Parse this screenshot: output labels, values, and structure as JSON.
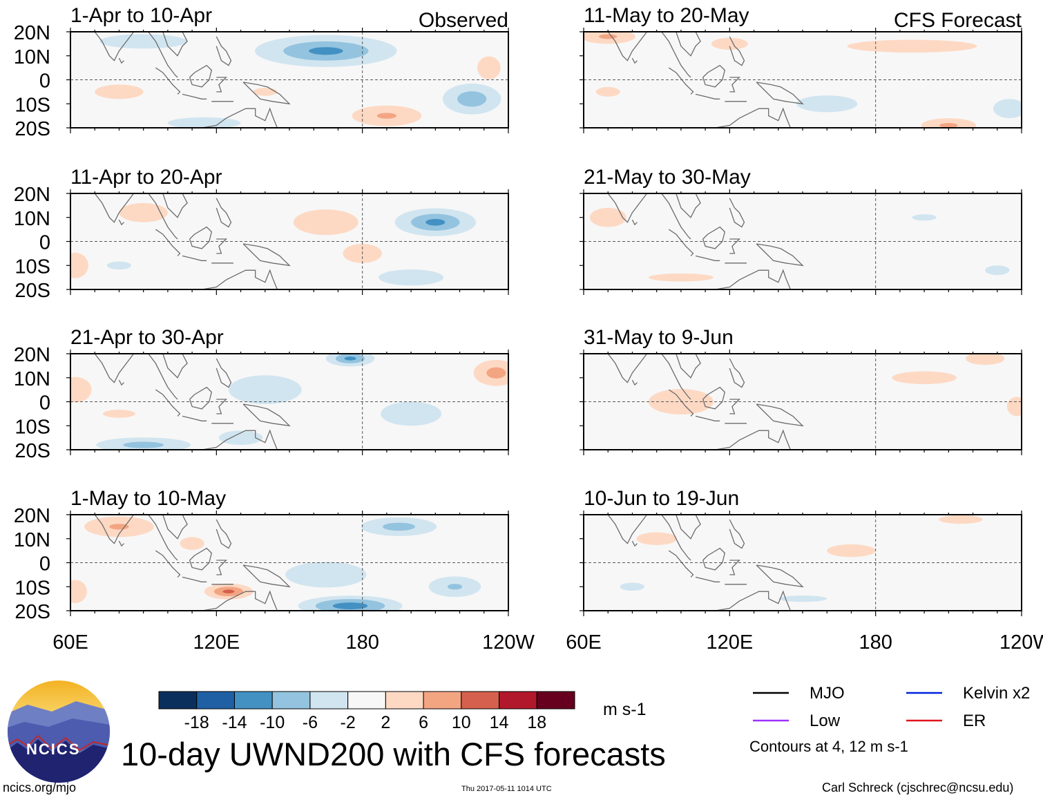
{
  "figure": {
    "main_title": "10-day UWND200 with CFS forecasts",
    "left_column_tag": "Observed",
    "right_column_tag": "CFS Forecast",
    "site_url": "ncics.org/mjo",
    "timestamp": "Thu 2017-05-11 1014 UTC",
    "credit": "Carl Schreck (cjschrec@ncsu.edu)",
    "logo_text": "NCICS",
    "contour_note": "Contours at 4, 12 m s-1"
  },
  "colorbar": {
    "units": "m s-1",
    "tick_labels": [
      "-18",
      "-14",
      "-10",
      "-6",
      "-2",
      "2",
      "6",
      "10",
      "14",
      "18"
    ],
    "colors": [
      "#0b2f5c",
      "#1f60a4",
      "#4391c3",
      "#93c3df",
      "#d1e5f0",
      "#f7f7f7",
      "#fdd9c4",
      "#f3a582",
      "#d5604d",
      "#b2182b",
      "#67001f"
    ]
  },
  "legend": [
    {
      "label": "MJO",
      "color": "#000000"
    },
    {
      "label": "Kelvin x2",
      "color": "#0022dd"
    },
    {
      "label": "Low",
      "color": "#9b30ff"
    },
    {
      "label": "ER",
      "color": "#e0141e"
    }
  ],
  "chart_data": {
    "type": "heatmap",
    "variable": "UWND200 anomaly",
    "xticks": [
      "60E",
      "120E",
      "180",
      "120W"
    ],
    "xrange_deg": [
      60,
      240
    ],
    "yticks": [
      "20N",
      "10N",
      "0",
      "10S",
      "20S"
    ],
    "yrange_deg": [
      -20,
      20
    ],
    "panels": [
      {
        "title": "1-Apr to 10-Apr",
        "source": "Observed",
        "blobs": [
          {
            "lon": 165,
            "lat": 12,
            "rx": 35,
            "ry": 8,
            "v": -12
          },
          {
            "lon": 225,
            "lat": -8,
            "rx": 15,
            "ry": 8,
            "v": -10
          },
          {
            "lon": 90,
            "lat": 16,
            "rx": 30,
            "ry": 5,
            "v": -5
          },
          {
            "lon": 80,
            "lat": -5,
            "rx": 20,
            "ry": 6,
            "v": 4
          },
          {
            "lon": 190,
            "lat": -15,
            "rx": 20,
            "ry": 6,
            "v": 7
          },
          {
            "lon": 115,
            "lat": -18,
            "rx": 25,
            "ry": 4,
            "v": -5
          },
          {
            "lon": 232,
            "lat": 5,
            "rx": 8,
            "ry": 8,
            "v": 5
          },
          {
            "lon": 140,
            "lat": -5,
            "rx": 15,
            "ry": 5,
            "v": 3
          }
        ]
      },
      {
        "title": "11-Apr to 20-Apr",
        "source": "Observed",
        "blobs": [
          {
            "lon": 210,
            "lat": 8,
            "rx": 20,
            "ry": 7,
            "v": -12
          },
          {
            "lon": 90,
            "lat": 12,
            "rx": 20,
            "ry": 8,
            "v": 4
          },
          {
            "lon": 165,
            "lat": 8,
            "rx": 20,
            "ry": 8,
            "v": 6
          },
          {
            "lon": 62,
            "lat": -10,
            "rx": 8,
            "ry": 8,
            "v": 6
          },
          {
            "lon": 180,
            "lat": -5,
            "rx": 12,
            "ry": 6,
            "v": 6
          },
          {
            "lon": 200,
            "lat": -15,
            "rx": 20,
            "ry": 5,
            "v": -6
          },
          {
            "lon": 80,
            "lat": -10,
            "rx": 15,
            "ry": 5,
            "v": -3
          }
        ]
      },
      {
        "title": "21-Apr to 30-Apr",
        "source": "Observed",
        "blobs": [
          {
            "lon": 175,
            "lat": 18,
            "rx": 12,
            "ry": 4,
            "v": -12
          },
          {
            "lon": 62,
            "lat": 5,
            "rx": 10,
            "ry": 8,
            "v": 6
          },
          {
            "lon": 235,
            "lat": 12,
            "rx": 12,
            "ry": 7,
            "v": 9
          },
          {
            "lon": 140,
            "lat": 5,
            "rx": 25,
            "ry": 10,
            "v": -5
          },
          {
            "lon": 200,
            "lat": -5,
            "rx": 25,
            "ry": 10,
            "v": -4
          },
          {
            "lon": 90,
            "lat": -18,
            "rx": 25,
            "ry": 4,
            "v": -9
          },
          {
            "lon": 130,
            "lat": -15,
            "rx": 15,
            "ry": 5,
            "v": -5
          },
          {
            "lon": 80,
            "lat": -5,
            "rx": 20,
            "ry": 5,
            "v": 3
          }
        ]
      },
      {
        "title": "1-May to 10-May",
        "source": "Observed",
        "blobs": [
          {
            "lon": 80,
            "lat": 15,
            "rx": 20,
            "ry": 6,
            "v": 7
          },
          {
            "lon": 125,
            "lat": -12,
            "rx": 12,
            "ry": 4,
            "v": 12
          },
          {
            "lon": 175,
            "lat": -18,
            "rx": 25,
            "ry": 5,
            "v": -14
          },
          {
            "lon": 195,
            "lat": 15,
            "rx": 20,
            "ry": 5,
            "v": -9
          },
          {
            "lon": 165,
            "lat": -5,
            "rx": 25,
            "ry": 8,
            "v": -6
          },
          {
            "lon": 218,
            "lat": -10,
            "rx": 15,
            "ry": 6,
            "v": -7
          },
          {
            "lon": 62,
            "lat": -12,
            "rx": 8,
            "ry": 8,
            "v": 5
          },
          {
            "lon": 110,
            "lat": 8,
            "rx": 15,
            "ry": 8,
            "v": 3
          }
        ]
      },
      {
        "title": "11-May to 20-May",
        "source": "CFS Forecast",
        "blobs": [
          {
            "lon": 70,
            "lat": 18,
            "rx": 15,
            "ry": 4,
            "v": 8
          },
          {
            "lon": 195,
            "lat": 14,
            "rx": 40,
            "ry": 4,
            "v": 6
          },
          {
            "lon": 120,
            "lat": 15,
            "rx": 15,
            "ry": 5,
            "v": 4
          },
          {
            "lon": 210,
            "lat": -19,
            "rx": 15,
            "ry": 4,
            "v": 8
          },
          {
            "lon": 160,
            "lat": -10,
            "rx": 25,
            "ry": 7,
            "v": -4
          },
          {
            "lon": 235,
            "lat": -12,
            "rx": 10,
            "ry": 6,
            "v": -6
          },
          {
            "lon": 70,
            "lat": -5,
            "rx": 15,
            "ry": 6,
            "v": 3
          }
        ]
      },
      {
        "title": "21-May to 30-May",
        "source": "CFS Forecast",
        "blobs": [
          {
            "lon": 70,
            "lat": 10,
            "rx": 15,
            "ry": 8,
            "v": 4
          },
          {
            "lon": 100,
            "lat": -15,
            "rx": 40,
            "ry": 5,
            "v": 3
          },
          {
            "lon": 200,
            "lat": 10,
            "rx": 15,
            "ry": 4,
            "v": -3
          },
          {
            "lon": 230,
            "lat": -12,
            "rx": 15,
            "ry": 6,
            "v": -3
          }
        ]
      },
      {
        "title": "31-May to 9-Jun",
        "source": "CFS Forecast",
        "blobs": [
          {
            "lon": 100,
            "lat": 0,
            "rx": 40,
            "ry": 16,
            "v": 3
          },
          {
            "lon": 200,
            "lat": 10,
            "rx": 40,
            "ry": 8,
            "v": 3
          },
          {
            "lon": 225,
            "lat": 18,
            "rx": 12,
            "ry": 4,
            "v": 6
          },
          {
            "lon": 238,
            "lat": -2,
            "rx": 6,
            "ry": 6,
            "v": 6
          }
        ]
      },
      {
        "title": "10-Jun to 19-Jun",
        "source": "CFS Forecast",
        "blobs": [
          {
            "lon": 90,
            "lat": 10,
            "rx": 25,
            "ry": 8,
            "v": 3
          },
          {
            "lon": 170,
            "lat": 5,
            "rx": 30,
            "ry": 8,
            "v": 3
          },
          {
            "lon": 215,
            "lat": 18,
            "rx": 15,
            "ry": 3,
            "v": 5
          },
          {
            "lon": 150,
            "lat": -15,
            "rx": 30,
            "ry": 4,
            "v": -3
          },
          {
            "lon": 80,
            "lat": -10,
            "rx": 15,
            "ry": 5,
            "v": -3
          }
        ]
      }
    ]
  }
}
